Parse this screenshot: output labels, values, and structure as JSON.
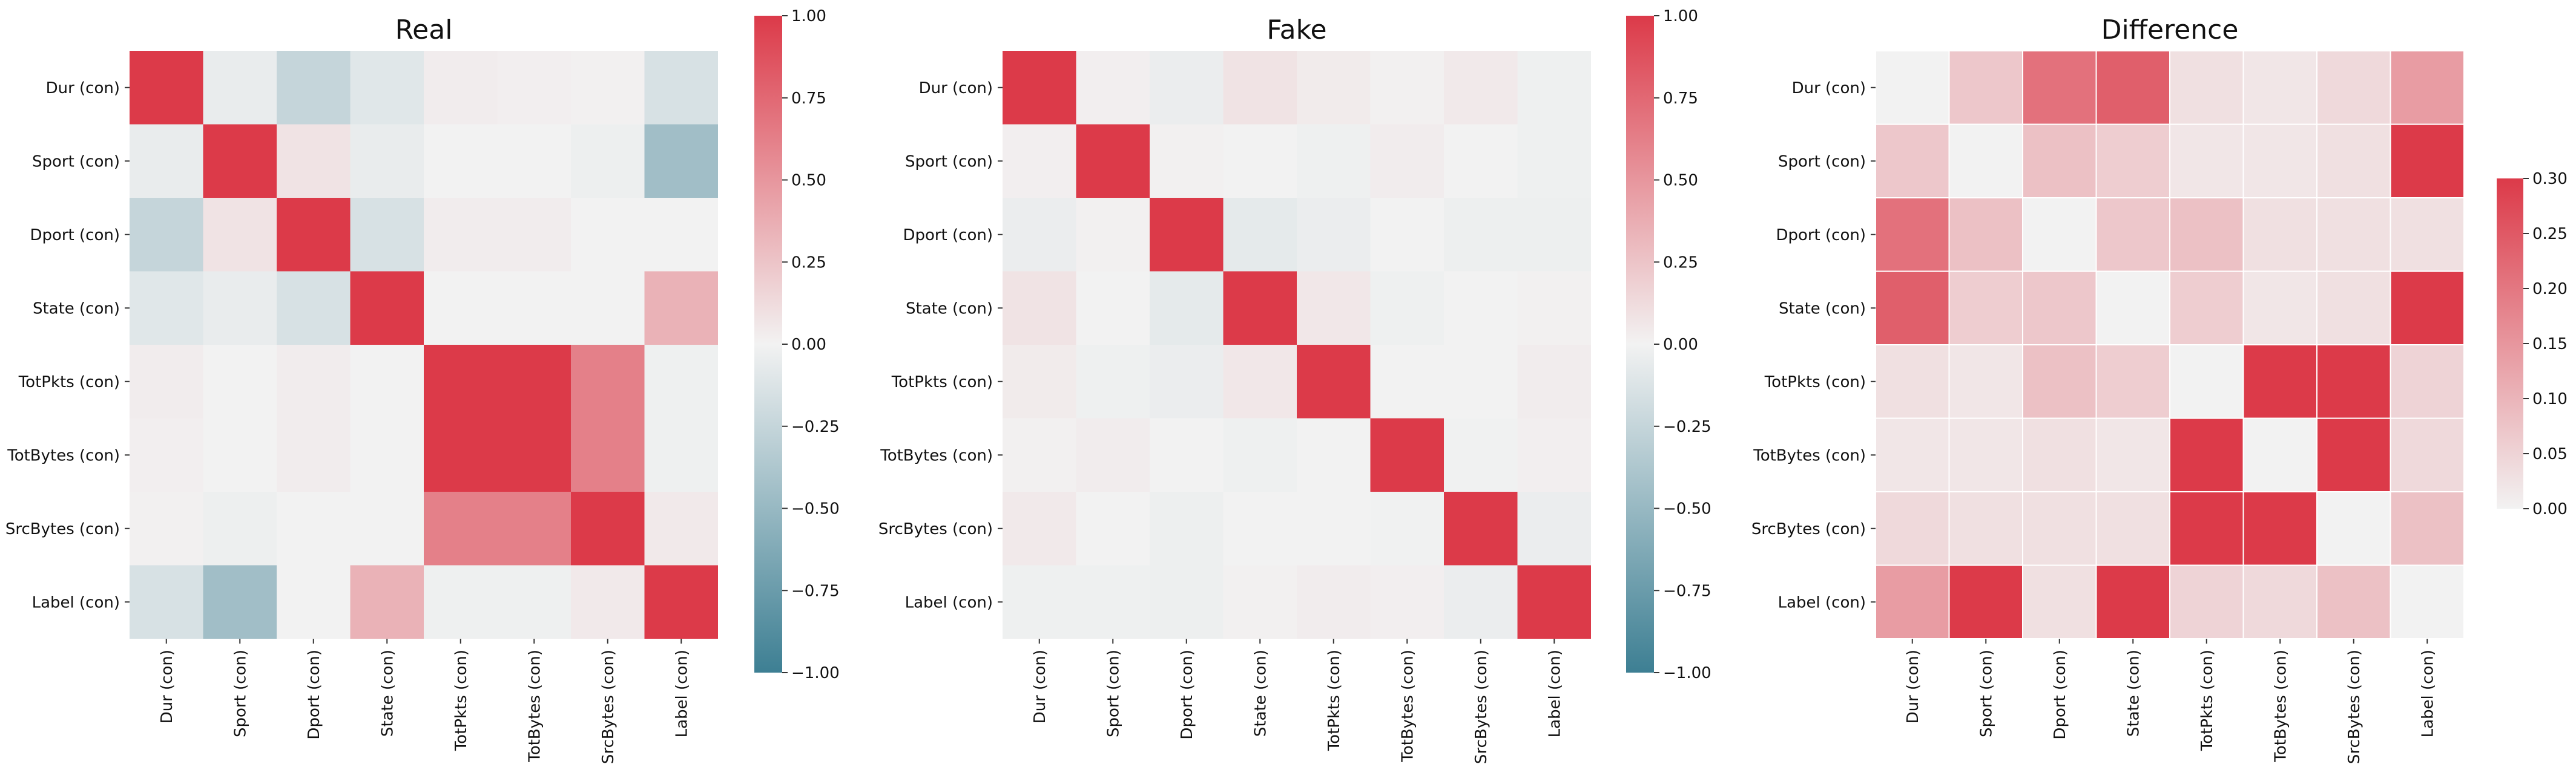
{
  "chart_data": [
    {
      "type": "heatmap",
      "title": "Real",
      "x_labels": [
        "Dur (con)",
        "Sport (con)",
        "Dport (con)",
        "State (con)",
        "TotPkts (con)",
        "TotBytes (con)",
        "SrcBytes (con)",
        "Label (con)"
      ],
      "y_labels": [
        "Dur (con)",
        "Sport (con)",
        "Dport (con)",
        "State (con)",
        "TotPkts (con)",
        "TotBytes (con)",
        "SrcBytes (con)",
        "Label (con)"
      ],
      "values": [
        [
          1.0,
          -0.05,
          -0.25,
          -0.1,
          0.03,
          0.02,
          0.01,
          -0.15
        ],
        [
          -0.05,
          1.0,
          0.08,
          -0.05,
          0.0,
          0.0,
          -0.03,
          -0.45
        ],
        [
          -0.25,
          0.08,
          1.0,
          -0.15,
          0.03,
          0.03,
          0.0,
          0.0
        ],
        [
          -0.1,
          -0.05,
          -0.15,
          1.0,
          0.0,
          0.0,
          0.0,
          0.35
        ],
        [
          0.03,
          0.0,
          0.03,
          0.0,
          1.0,
          1.0,
          0.62,
          -0.02
        ],
        [
          0.02,
          0.0,
          0.03,
          0.0,
          1.0,
          1.0,
          0.62,
          -0.02
        ],
        [
          0.01,
          -0.03,
          0.0,
          0.0,
          0.62,
          0.62,
          1.0,
          0.05
        ],
        [
          -0.15,
          -0.45,
          0.0,
          0.35,
          -0.02,
          -0.02,
          0.05,
          1.0
        ]
      ],
      "colorbar": {
        "min": -1.0,
        "max": 1.0,
        "ticks": [
          "1.00",
          "0.75",
          "0.50",
          "0.25",
          "0.00",
          "−0.25",
          "−0.50",
          "−0.75",
          "−1.00"
        ]
      },
      "colormap": "diverging",
      "low_color": "#3d7f93",
      "mid_color": "#f2f2f2",
      "high_color": "#dc3a49"
    },
    {
      "type": "heatmap",
      "title": "Fake",
      "x_labels": [
        "Dur (con)",
        "Sport (con)",
        "Dport (con)",
        "State (con)",
        "TotPkts (con)",
        "TotBytes (con)",
        "SrcBytes (con)",
        "Label (con)"
      ],
      "y_labels": [
        "Dur (con)",
        "Sport (con)",
        "Dport (con)",
        "State (con)",
        "TotPkts (con)",
        "TotBytes (con)",
        "SrcBytes (con)",
        "Label (con)"
      ],
      "values": [
        [
          1.0,
          0.02,
          -0.04,
          0.08,
          0.04,
          0.01,
          0.05,
          -0.02
        ],
        [
          0.02,
          1.0,
          0.01,
          0.0,
          -0.02,
          0.03,
          0.0,
          -0.02
        ],
        [
          -0.04,
          0.01,
          1.0,
          -0.07,
          -0.04,
          0.0,
          -0.03,
          -0.03
        ],
        [
          0.08,
          0.0,
          -0.07,
          1.0,
          0.06,
          -0.02,
          0.0,
          0.01
        ],
        [
          0.04,
          -0.02,
          -0.04,
          0.06,
          1.0,
          0.0,
          0.0,
          0.03
        ],
        [
          0.01,
          0.03,
          0.0,
          -0.02,
          0.0,
          1.0,
          -0.01,
          0.02
        ],
        [
          0.05,
          0.0,
          -0.03,
          0.0,
          0.0,
          -0.01,
          1.0,
          -0.04
        ],
        [
          -0.02,
          -0.02,
          -0.03,
          0.01,
          0.03,
          0.02,
          -0.04,
          1.0
        ]
      ],
      "colorbar": {
        "min": -1.0,
        "max": 1.0,
        "ticks": [
          "1.00",
          "0.75",
          "0.50",
          "0.25",
          "0.00",
          "−0.25",
          "−0.50",
          "−0.75",
          "−1.00"
        ]
      },
      "colormap": "diverging",
      "low_color": "#3d7f93",
      "mid_color": "#f2f2f2",
      "high_color": "#dc3a49"
    },
    {
      "type": "heatmap",
      "title": "Difference",
      "x_labels": [
        "Dur (con)",
        "Sport (con)",
        "Dport (con)",
        "State (con)",
        "TotPkts (con)",
        "TotBytes (con)",
        "SrcBytes (con)",
        "Label (con)"
      ],
      "y_labels": [
        "Dur (con)",
        "Sport (con)",
        "Dport (con)",
        "State (con)",
        "TotPkts (con)",
        "TotBytes (con)",
        "SrcBytes (con)",
        "Label (con)"
      ],
      "values": [
        [
          0.0,
          0.07,
          0.21,
          0.24,
          0.03,
          0.02,
          0.04,
          0.14
        ],
        [
          0.07,
          0.0,
          0.08,
          0.06,
          0.02,
          0.02,
          0.03,
          0.45
        ],
        [
          0.21,
          0.08,
          0.0,
          0.07,
          0.08,
          0.03,
          0.03,
          0.03
        ],
        [
          0.24,
          0.06,
          0.07,
          0.0,
          0.06,
          0.02,
          0.03,
          0.34
        ],
        [
          0.03,
          0.02,
          0.08,
          0.06,
          0.0,
          1.0,
          0.62,
          0.05
        ],
        [
          0.02,
          0.02,
          0.03,
          0.02,
          1.0,
          0.0,
          0.63,
          0.04
        ],
        [
          0.04,
          0.03,
          0.03,
          0.03,
          0.62,
          0.63,
          0.0,
          0.08
        ],
        [
          0.14,
          0.45,
          0.03,
          0.34,
          0.05,
          0.04,
          0.08,
          0.0
        ]
      ],
      "colorbar": {
        "min": 0.0,
        "max": 0.3,
        "ticks": [
          "0.30",
          "0.25",
          "0.20",
          "0.15",
          "0.10",
          "0.05",
          "0.00"
        ]
      },
      "colormap": "sequential",
      "low_color": "#f2f2f2",
      "high_color": "#dc3a49"
    }
  ]
}
